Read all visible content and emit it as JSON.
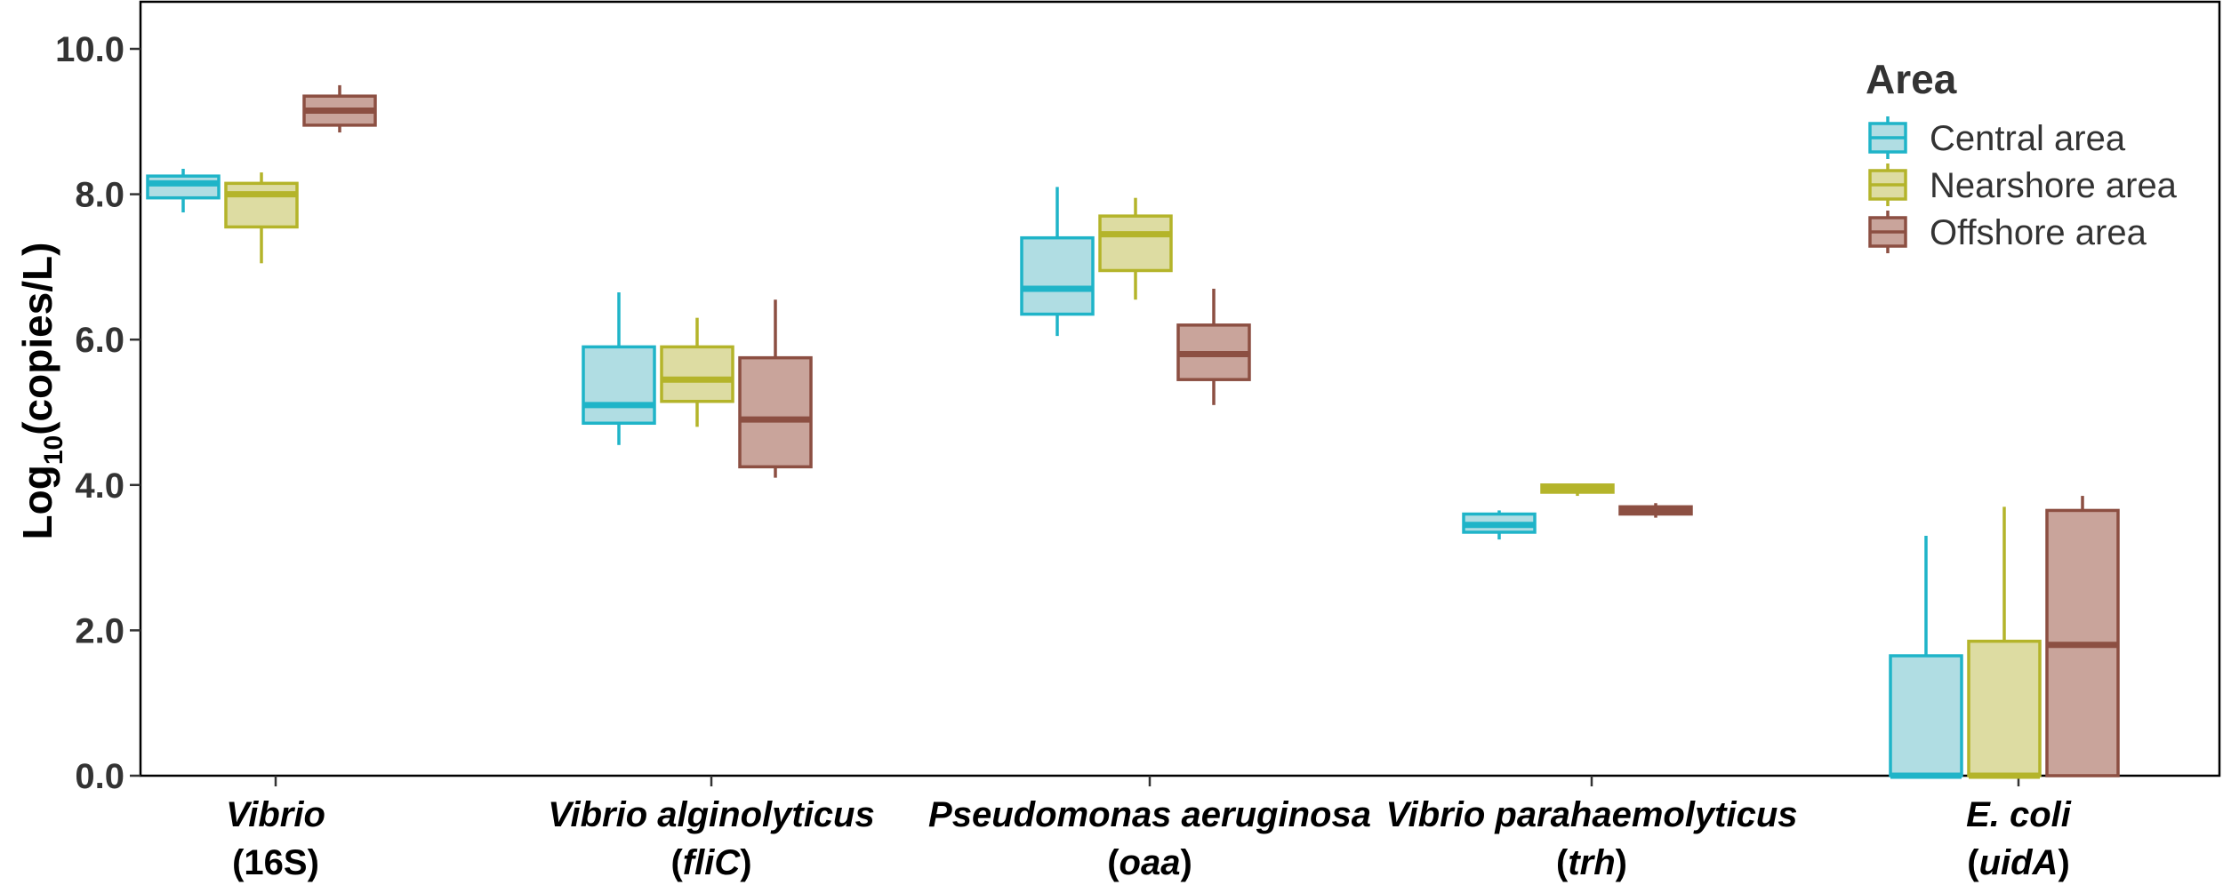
{
  "chart_data": {
    "type": "box",
    "ylabel_main": "Log",
    "ylabel_sub": "10",
    "ylabel_rest": "(copies/L)",
    "ylim": [
      0,
      10.5
    ],
    "yticks": [
      "0.0",
      "2.0",
      "4.0",
      "6.0",
      "8.0",
      "10.0"
    ],
    "grid": false,
    "legend": {
      "title": "Area",
      "position": "top-right",
      "entries": [
        "Central area",
        "Nearshore area",
        "Offshore area"
      ]
    },
    "categories": [
      {
        "name": "Vibrio",
        "gene": "(16S)",
        "gene_italic": ""
      },
      {
        "name": "Vibrio alginolyticus",
        "gene": "(",
        "gene_italic": "fliC",
        "gene_end": ")"
      },
      {
        "name": "Pseudomonas aeruginosa",
        "gene": "(",
        "gene_italic": "oaa",
        "gene_end": ")"
      },
      {
        "name": "Vibrio parahaemolyticus",
        "gene": "(",
        "gene_italic": "trh",
        "gene_end": ")"
      },
      {
        "name": "E. coli",
        "gene": "(",
        "gene_italic": "uidA",
        "gene_end": ")"
      }
    ],
    "series": [
      {
        "name": "Central area",
        "color": "#1fb4c8",
        "fill": "#b0dde3",
        "boxes": [
          {
            "min": 7.75,
            "q1": 7.95,
            "median": 8.15,
            "q3": 8.25,
            "max": 8.35
          },
          {
            "min": 4.55,
            "q1": 4.85,
            "median": 5.1,
            "q3": 5.9,
            "max": 6.65
          },
          {
            "min": 6.05,
            "q1": 6.35,
            "median": 6.7,
            "q3": 7.4,
            "max": 8.1
          },
          {
            "min": 3.25,
            "q1": 3.35,
            "median": 3.45,
            "q3": 3.6,
            "max": 3.65
          },
          {
            "min": 0.0,
            "q1": 0.0,
            "median": 0.0,
            "q3": 1.65,
            "max": 3.3
          }
        ]
      },
      {
        "name": "Nearshore area",
        "color": "#b4b42a",
        "fill": "#dddca2",
        "boxes": [
          {
            "min": 7.05,
            "q1": 7.55,
            "median": 8.0,
            "q3": 8.15,
            "max": 8.3
          },
          {
            "min": 4.8,
            "q1": 5.15,
            "median": 5.45,
            "q3": 5.9,
            "max": 6.3
          },
          {
            "min": 6.55,
            "q1": 6.95,
            "median": 7.45,
            "q3": 7.7,
            "max": 7.95
          },
          {
            "min": 3.85,
            "q1": 3.9,
            "median": 3.95,
            "q3": 4.0,
            "max": 4.0
          },
          {
            "min": 0.0,
            "q1": 0.0,
            "median": 0.0,
            "q3": 1.85,
            "max": 3.7
          }
        ]
      },
      {
        "name": "Offshore area",
        "color": "#8c4f42",
        "fill": "#c9a49b",
        "boxes": [
          {
            "min": 8.85,
            "q1": 8.95,
            "median": 9.15,
            "q3": 9.35,
            "max": 9.5
          },
          {
            "min": 4.1,
            "q1": 4.25,
            "median": 4.9,
            "q3": 5.75,
            "max": 6.55
          },
          {
            "min": 5.1,
            "q1": 5.45,
            "median": 5.8,
            "q3": 6.2,
            "max": 6.7
          },
          {
            "min": 3.55,
            "q1": 3.6,
            "median": 3.65,
            "q3": 3.7,
            "max": 3.75
          },
          {
            "min": 0.0,
            "q1": 0.0,
            "median": 1.8,
            "q3": 3.65,
            "max": 3.85
          }
        ]
      }
    ]
  }
}
